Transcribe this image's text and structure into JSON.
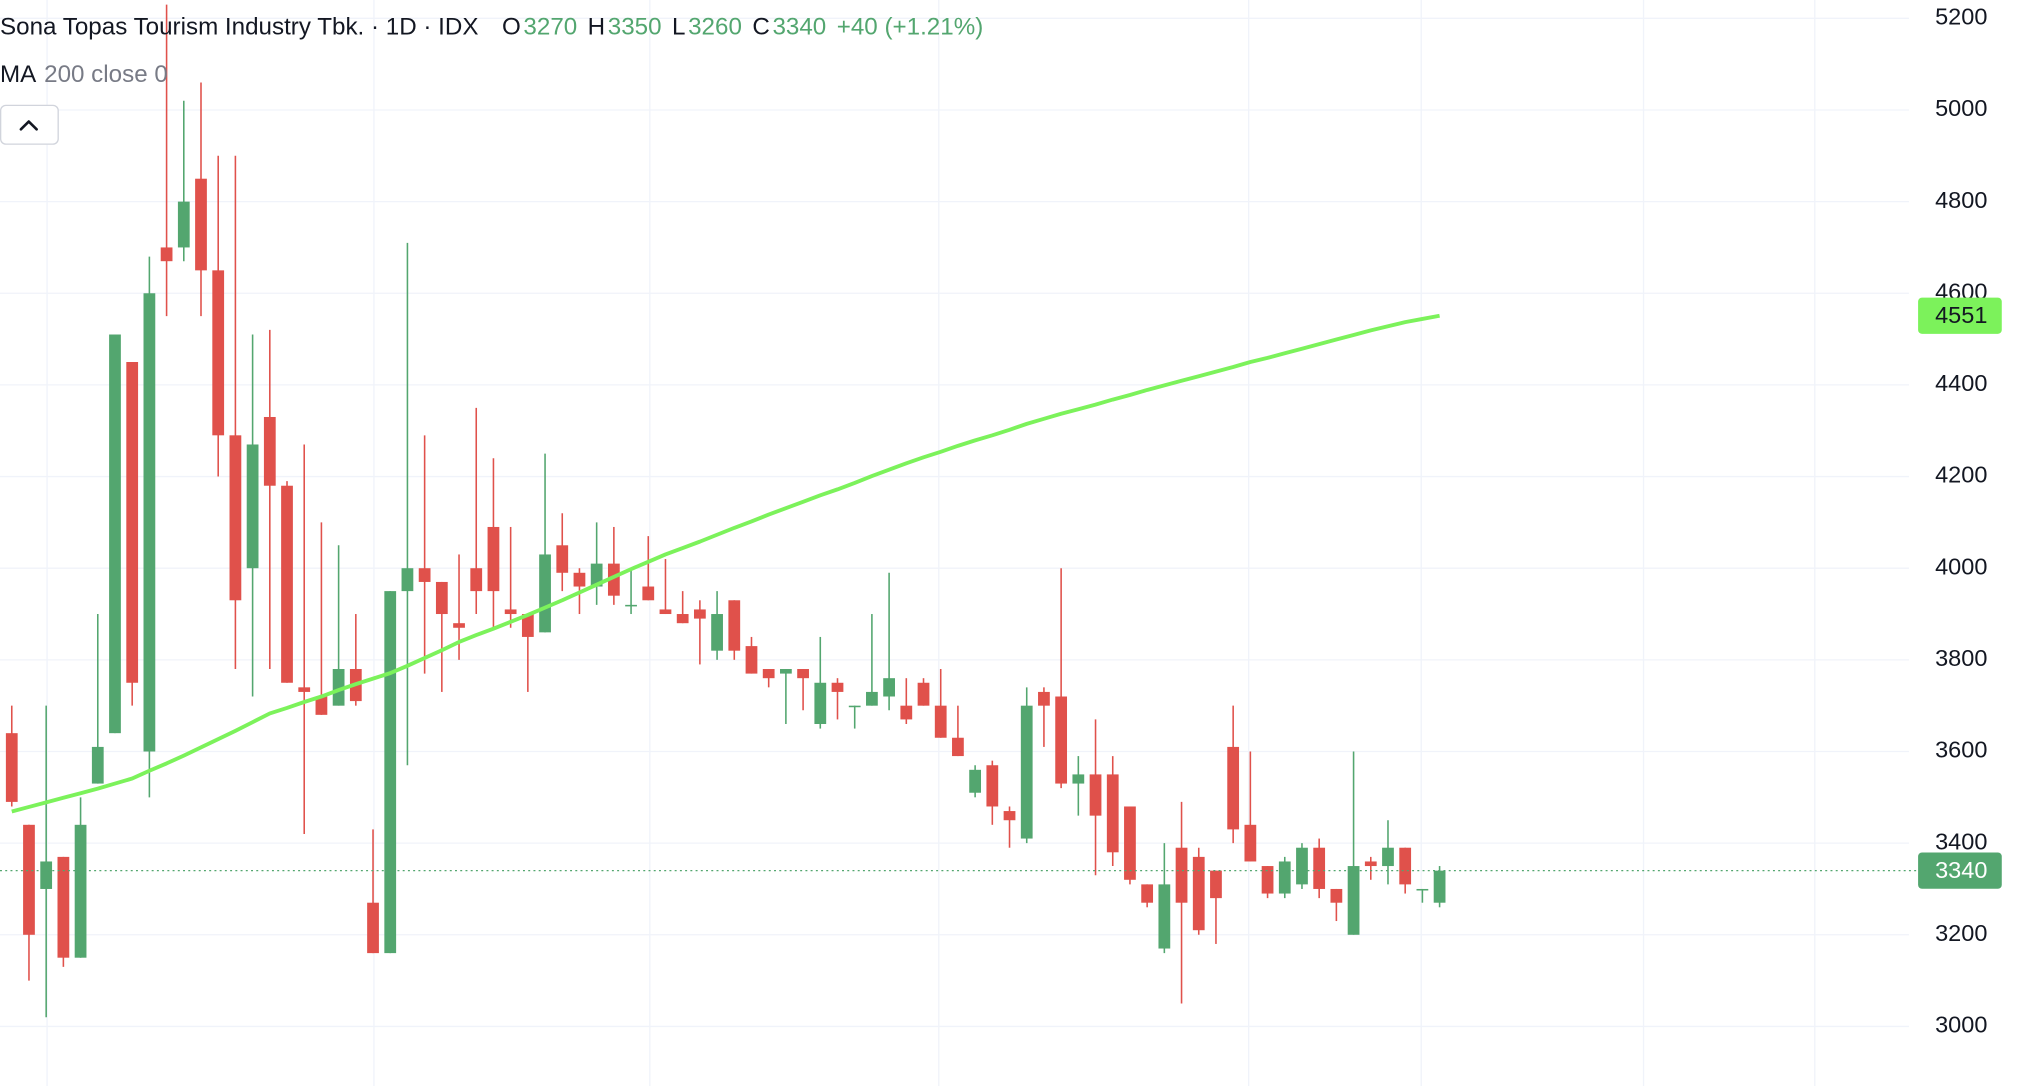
{
  "chart_data": {
    "type": "candlestick",
    "title": "Sona Topas Tourism Industry Tbk. · 1D · IDX",
    "ohlc_labels": [
      "O",
      "H",
      "L",
      "C"
    ],
    "change": "+40 (+1.21%)",
    "up_color": "#53a66f",
    "down_color": "#e0514b",
    "open": [
      3640,
      3440,
      3300,
      3370,
      3150,
      3530,
      3640,
      4450,
      3600,
      4700,
      4700,
      4850,
      4650,
      4290,
      4000,
      4330,
      4180,
      3740,
      3720,
      3700,
      3780,
      3270,
      3160,
      3950,
      4000,
      3970,
      3880,
      4000,
      4090,
      3910,
      3900,
      3860,
      4050,
      3990,
      3960,
      4010,
      3920,
      3960,
      3910,
      3900,
      3910,
      3820,
      3930,
      3830,
      3780,
      3770,
      3780,
      3660,
      3750,
      3700,
      3700,
      3720,
      3700,
      3750,
      3700,
      3630,
      3510,
      3570,
      3470,
      3410,
      3730,
      3720,
      3530,
      3550,
      3550,
      3480,
      3310,
      3170,
      3390,
      3370,
      3340,
      3610,
      3440,
      3350,
      3290,
      3310,
      3390,
      3300,
      3200,
      3360,
      3350,
      3390,
      3300,
      3270
    ],
    "high": [
      3700,
      3440,
      3700,
      3370,
      3500,
      3900,
      4510,
      4450,
      4680,
      5230,
      5020,
      5060,
      4900,
      4900,
      4510,
      4520,
      4190,
      4270,
      4100,
      4050,
      3900,
      3430,
      3950,
      4710,
      4290,
      3970,
      4030,
      4350,
      4240,
      4090,
      3900,
      4250,
      4120,
      4000,
      4100,
      4090,
      4000,
      4070,
      4020,
      3950,
      3930,
      3950,
      3930,
      3850,
      3780,
      3780,
      3780,
      3850,
      3760,
      3700,
      3900,
      3990,
      3760,
      3760,
      3780,
      3700,
      3570,
      3580,
      3480,
      3740,
      3740,
      4000,
      3590,
      3670,
      3590,
      3480,
      3310,
      3400,
      3490,
      3390,
      3340,
      3700,
      3600,
      3350,
      3370,
      3400,
      3410,
      3300,
      3600,
      3370,
      3450,
      3390,
      3300,
      3350
    ],
    "low": [
      3480,
      3100,
      3020,
      3130,
      3150,
      3530,
      3640,
      3700,
      3500,
      4550,
      4670,
      4550,
      4200,
      3780,
      3720,
      3780,
      3750,
      3420,
      3680,
      3700,
      3700,
      3160,
      3160,
      3570,
      3770,
      3730,
      3800,
      3900,
      3870,
      3870,
      3730,
      3860,
      3950,
      3900,
      3920,
      3920,
      3900,
      3930,
      3900,
      3880,
      3790,
      3800,
      3800,
      3770,
      3740,
      3660,
      3690,
      3650,
      3670,
      3650,
      3700,
      3690,
      3660,
      3700,
      3630,
      3590,
      3500,
      3440,
      3390,
      3400,
      3610,
      3520,
      3460,
      3330,
      3350,
      3310,
      3260,
      3160,
      3050,
      3200,
      3180,
      3400,
      3360,
      3280,
      3280,
      3300,
      3280,
      3230,
      3200,
      3320,
      3310,
      3290,
      3270,
      3260
    ],
    "close": [
      3490,
      3200,
      3360,
      3150,
      3440,
      3610,
      4510,
      3750,
      4600,
      4670,
      4800,
      4650,
      4290,
      3930,
      4270,
      4180,
      3750,
      3730,
      3680,
      3780,
      3710,
      3160,
      3950,
      4000,
      3970,
      3900,
      3870,
      3950,
      3950,
      3900,
      3850,
      4030,
      3990,
      3960,
      4010,
      3940,
      3920,
      3930,
      3900,
      3880,
      3890,
      3900,
      3820,
      3770,
      3760,
      3780,
      3760,
      3750,
      3730,
      3700,
      3730,
      3760,
      3670,
      3700,
      3630,
      3590,
      3560,
      3480,
      3450,
      3700,
      3700,
      3530,
      3550,
      3460,
      3380,
      3320,
      3270,
      3310,
      3270,
      3210,
      3280,
      3430,
      3360,
      3290,
      3360,
      3390,
      3300,
      3270,
      3350,
      3350,
      3390,
      3310,
      3300,
      3340
    ],
    "ma": {
      "name": "MA",
      "params": "200 close 0",
      "color": "#7cf25b",
      "values": [
        3469,
        3479,
        3489,
        3499,
        3509,
        3519,
        3530,
        3541,
        3558,
        3574,
        3591,
        3609,
        3627,
        3645,
        3664,
        3683,
        3695,
        3708,
        3720,
        3734,
        3747,
        3759,
        3771,
        3787,
        3804,
        3821,
        3839,
        3854,
        3868,
        3883,
        3898,
        3914,
        3930,
        3947,
        3964,
        3981,
        3998,
        4014,
        4030,
        4044,
        4058,
        4073,
        4088,
        4102,
        4117,
        4131,
        4145,
        4159,
        4172,
        4186,
        4201,
        4215,
        4229,
        4242,
        4254,
        4267,
        4279,
        4290,
        4302,
        4315,
        4326,
        4337,
        4347,
        4357,
        4368,
        4378,
        4389,
        4399,
        4409,
        4419,
        4429,
        4439,
        4450,
        4459,
        4469,
        4479,
        4489,
        4499,
        4509,
        4519,
        4528,
        4537,
        4544,
        4551
      ]
    },
    "ylim": [
      2870,
      5240
    ],
    "yticks": [
      3000,
      3200,
      3400,
      3600,
      3800,
      4000,
      4200,
      4400,
      4600,
      4800,
      5000,
      5200
    ],
    "grid": true
  }
}
